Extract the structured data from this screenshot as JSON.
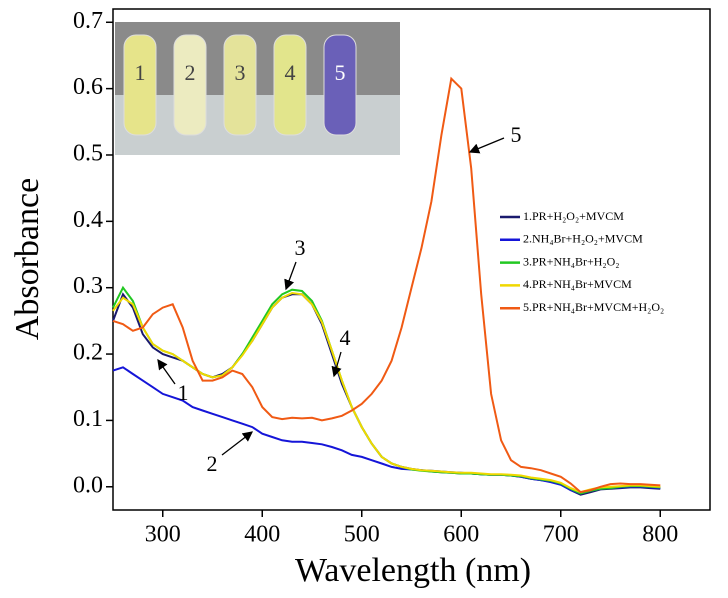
{
  "chart_data": {
    "type": "line",
    "xlabel": "Wavelength (nm)",
    "ylabel": "Absorbance",
    "x": [
      250,
      260,
      270,
      280,
      290,
      300,
      310,
      320,
      330,
      340,
      350,
      360,
      370,
      380,
      390,
      400,
      410,
      420,
      430,
      440,
      450,
      460,
      470,
      480,
      490,
      500,
      510,
      520,
      530,
      540,
      550,
      560,
      570,
      580,
      590,
      600,
      610,
      620,
      630,
      640,
      650,
      660,
      670,
      680,
      690,
      700,
      710,
      720,
      730,
      740,
      750,
      760,
      770,
      780,
      790,
      800
    ],
    "series": [
      {
        "name": "1.PR+H₂O₂+MVCM",
        "color": "#1a1a6e",
        "values": [
          0.25,
          0.29,
          0.27,
          0.23,
          0.21,
          0.2,
          0.195,
          0.19,
          0.18,
          0.17,
          0.165,
          0.17,
          0.18,
          0.2,
          0.22,
          0.245,
          0.27,
          0.285,
          0.29,
          0.29,
          0.275,
          0.245,
          0.2,
          0.155,
          0.12,
          0.09,
          0.065,
          0.045,
          0.035,
          0.03,
          0.027,
          0.025,
          0.023,
          0.022,
          0.021,
          0.02,
          0.02,
          0.019,
          0.018,
          0.018,
          0.017,
          0.015,
          0.012,
          0.01,
          0.008,
          0.004,
          -0.005,
          -0.012,
          -0.008,
          -0.004,
          -0.003,
          -0.002,
          -0.001,
          -0.001,
          -0.002,
          -0.003
        ]
      },
      {
        "name": "2.NH₄Br+H₂O₂+MVCM",
        "color": "#1515d8",
        "values": [
          0.175,
          0.18,
          0.17,
          0.16,
          0.15,
          0.14,
          0.135,
          0.13,
          0.12,
          0.115,
          0.11,
          0.105,
          0.1,
          0.095,
          0.09,
          0.08,
          0.075,
          0.07,
          0.068,
          0.068,
          0.066,
          0.064,
          0.06,
          0.055,
          0.048,
          0.045,
          0.04,
          0.035,
          0.03,
          0.027,
          0.026,
          0.025,
          0.024,
          0.023,
          0.022,
          0.021,
          0.02,
          0.019,
          0.018,
          0.018,
          0.017,
          0.015,
          0.012,
          0.01,
          0.007,
          0.003,
          -0.005,
          -0.01,
          -0.006,
          -0.003,
          -0.002,
          -0.001,
          0,
          0,
          -0.001,
          -0.002
        ]
      },
      {
        "name": "3.PR+NH₄Br+H₂O₂",
        "color": "#22c822",
        "values": [
          0.27,
          0.3,
          0.28,
          0.24,
          0.215,
          0.205,
          0.2,
          0.19,
          0.18,
          0.17,
          0.165,
          0.168,
          0.18,
          0.2,
          0.225,
          0.25,
          0.275,
          0.29,
          0.297,
          0.295,
          0.28,
          0.25,
          0.205,
          0.16,
          0.12,
          0.09,
          0.065,
          0.045,
          0.035,
          0.03,
          0.026,
          0.024,
          0.023,
          0.022,
          0.021,
          0.02,
          0.02,
          0.019,
          0.018,
          0.018,
          0.017,
          0.016,
          0.013,
          0.011,
          0.009,
          0.005,
          -0.003,
          -0.01,
          -0.006,
          -0.003,
          -0.002,
          0,
          0.001,
          0.001,
          0,
          -0.001
        ]
      },
      {
        "name": "4.PR+NH₄Br+MVCM",
        "color": "#f0d800",
        "values": [
          0.265,
          0.285,
          0.275,
          0.24,
          0.215,
          0.205,
          0.2,
          0.19,
          0.18,
          0.17,
          0.165,
          0.168,
          0.18,
          0.198,
          0.22,
          0.245,
          0.27,
          0.285,
          0.292,
          0.29,
          0.275,
          0.248,
          0.205,
          0.16,
          0.12,
          0.09,
          0.065,
          0.045,
          0.035,
          0.03,
          0.027,
          0.025,
          0.024,
          0.023,
          0.022,
          0.021,
          0.021,
          0.02,
          0.019,
          0.019,
          0.018,
          0.017,
          0.014,
          0.012,
          0.01,
          0.006,
          -0.002,
          -0.008,
          -0.004,
          -0.001,
          0,
          0.001,
          0.002,
          0.002,
          0.001,
          0
        ]
      },
      {
        "name": "5.PR+NH₄Br+MVCM+H₂O₂",
        "color": "#f05a14",
        "values": [
          0.25,
          0.245,
          0.235,
          0.24,
          0.26,
          0.27,
          0.275,
          0.24,
          0.19,
          0.16,
          0.16,
          0.165,
          0.175,
          0.17,
          0.15,
          0.12,
          0.105,
          0.102,
          0.104,
          0.103,
          0.104,
          0.1,
          0.103,
          0.107,
          0.115,
          0.125,
          0.14,
          0.16,
          0.19,
          0.24,
          0.3,
          0.36,
          0.43,
          0.53,
          0.615,
          0.6,
          0.48,
          0.29,
          0.14,
          0.07,
          0.04,
          0.03,
          0.028,
          0.025,
          0.02,
          0.015,
          0.005,
          -0.008,
          -0.005,
          0,
          0.004,
          0.005,
          0.004,
          0.004,
          0.003,
          0.002
        ]
      }
    ],
    "xlim": [
      250,
      850
    ],
    "ylim": [
      -0.035,
      0.72
    ],
    "xticks": [
      300,
      400,
      500,
      600,
      700,
      800
    ],
    "yticks": [
      {
        "value": 0,
        "label": "0.0"
      },
      0.1,
      0.2,
      0.3,
      0.4,
      0.5,
      0.6,
      0.7
    ],
    "annotations": [
      "1",
      "2",
      "3",
      "4",
      "5"
    ],
    "inset_labels": [
      "1",
      "2",
      "3",
      "4",
      "5"
    ]
  }
}
